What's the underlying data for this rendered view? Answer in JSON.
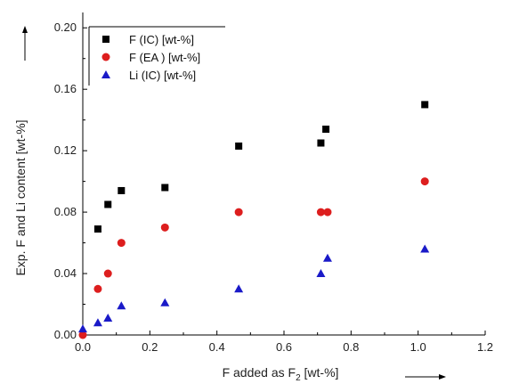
{
  "chart_data": {
    "type": "scatter",
    "xlabel": "F added as F",
    "xlabel_subscript": "2",
    "xlabel_suffix": " [wt-%]",
    "ylabel": "Exp. F and Li content [wt-%]",
    "xlim": [
      0,
      1.2
    ],
    "ylim": [
      0,
      0.21
    ],
    "x_ticks": [
      "0.0",
      "0.2",
      "0.4",
      "0.6",
      "0.8",
      "1.0",
      "1.2"
    ],
    "y_ticks": [
      "0.00",
      "0.04",
      "0.08",
      "0.12",
      "0.16",
      "0.20"
    ],
    "legend_position": "top-left",
    "series": [
      {
        "name": "F (IC) [wt-%]",
        "marker": "square",
        "color": "#000000",
        "points": [
          [
            0.045,
            0.069
          ],
          [
            0.075,
            0.085
          ],
          [
            0.115,
            0.094
          ],
          [
            0.245,
            0.096
          ],
          [
            0.465,
            0.123
          ],
          [
            0.71,
            0.125
          ],
          [
            0.725,
            0.134
          ],
          [
            1.02,
            0.15
          ]
        ]
      },
      {
        "name": "F (EA ) [wt-%]",
        "marker": "circle",
        "color": "#dd1e1e",
        "points": [
          [
            0.0,
            0.0
          ],
          [
            0.045,
            0.03
          ],
          [
            0.075,
            0.04
          ],
          [
            0.115,
            0.06
          ],
          [
            0.245,
            0.07
          ],
          [
            0.465,
            0.08
          ],
          [
            0.71,
            0.08
          ],
          [
            0.73,
            0.08
          ],
          [
            1.02,
            0.1
          ]
        ]
      },
      {
        "name": "Li (IC) [wt-%]",
        "marker": "triangle",
        "color": "#1a1ac8",
        "points": [
          [
            0.0,
            0.004
          ],
          [
            0.045,
            0.008
          ],
          [
            0.075,
            0.011
          ],
          [
            0.115,
            0.019
          ],
          [
            0.245,
            0.021
          ],
          [
            0.465,
            0.03
          ],
          [
            0.71,
            0.04
          ],
          [
            0.73,
            0.05
          ],
          [
            1.02,
            0.056
          ]
        ]
      }
    ]
  }
}
